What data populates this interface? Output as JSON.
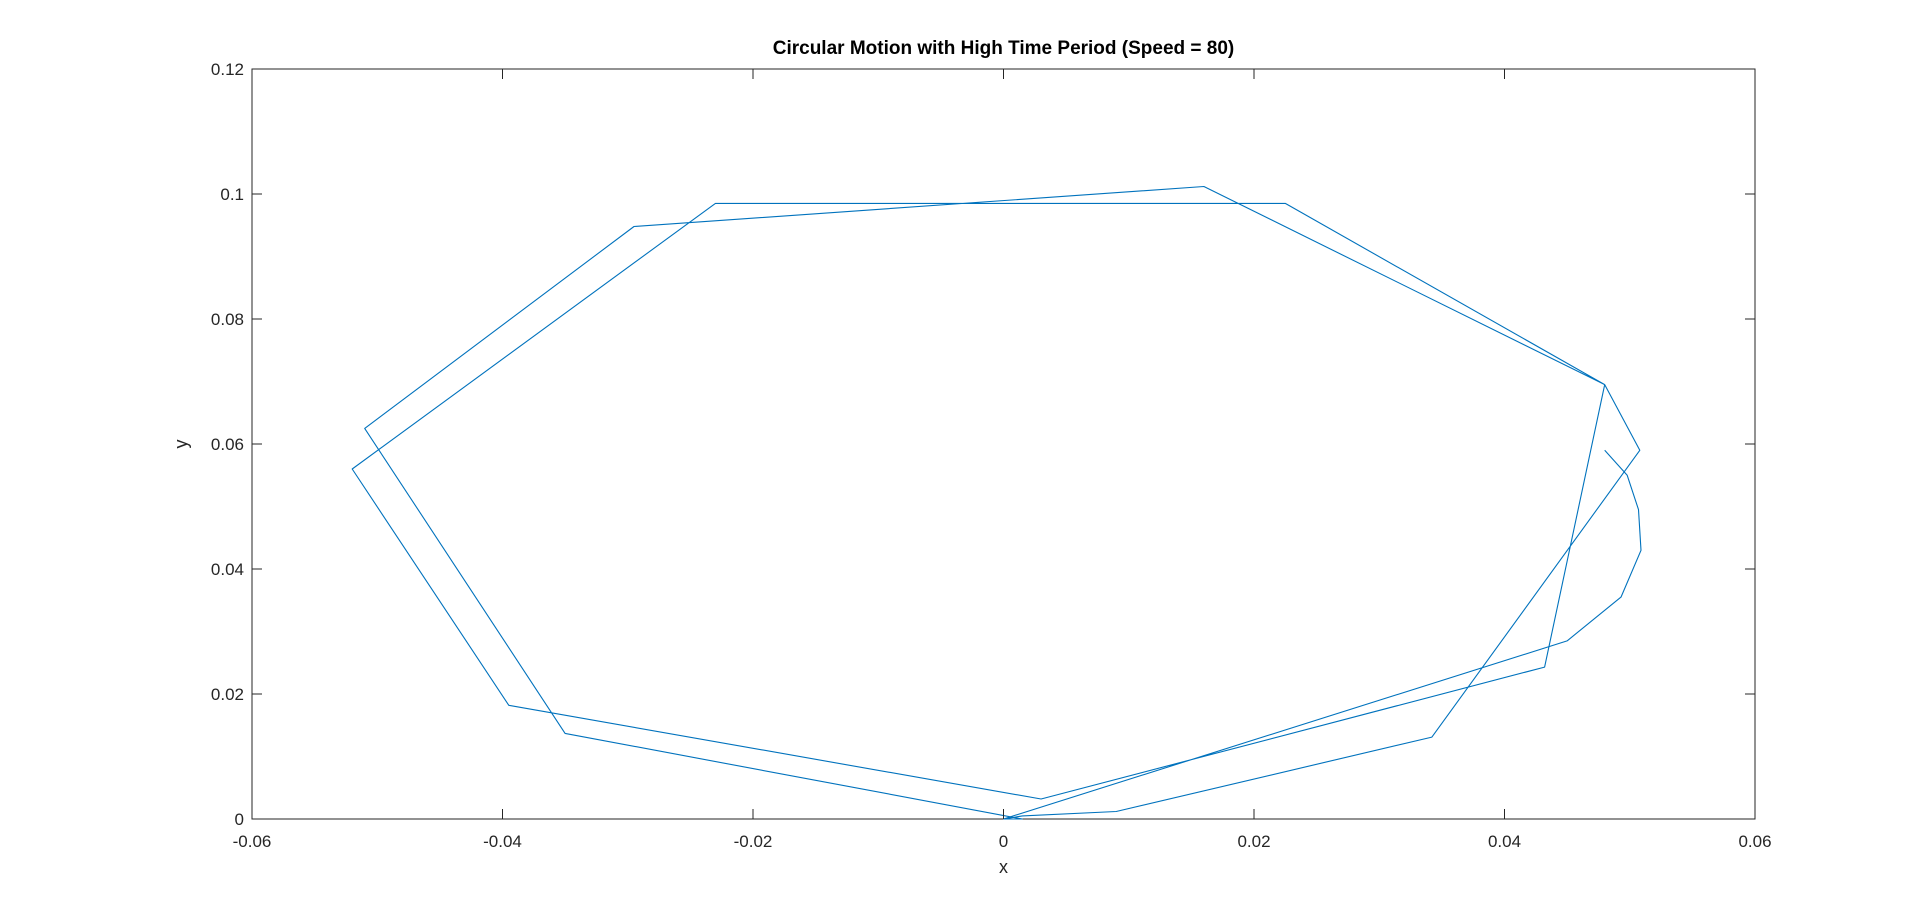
{
  "chart_data": {
    "type": "line",
    "title": "Circular Motion with High Time Period (Speed = 80)",
    "xlabel": "x",
    "ylabel": "y",
    "xlim": [
      -0.06,
      0.06
    ],
    "ylim": [
      0,
      0.12
    ],
    "xticks": [
      -0.06,
      -0.04,
      -0.02,
      0,
      0.02,
      0.04,
      0.06
    ],
    "xtick_labels": [
      "-0.06",
      "-0.04",
      "-0.02",
      "0",
      "0.02",
      "0.04",
      "0.06"
    ],
    "yticks": [
      0,
      0.02,
      0.04,
      0.06,
      0.08,
      0.1,
      0.12
    ],
    "ytick_labels": [
      "0",
      "0.02",
      "0.04",
      "0.06",
      "0.08",
      "0.1",
      "0.12"
    ],
    "grid": false,
    "line_color": "#0072BD",
    "series": [
      {
        "x": [
          0.0,
          0.0015,
          0.009,
          0.0342,
          0.0508,
          0.048,
          0.0225,
          -0.023,
          -0.052,
          -0.0395,
          0.003,
          0.0432,
          0.048,
          0.016,
          -0.0295,
          -0.051,
          -0.035,
          0.0015,
          0.0,
          0.045,
          0.0493,
          0.0509,
          0.0507,
          0.0498,
          0.048
        ],
        "y": [
          0.0,
          0.0005,
          0.0012,
          0.0131,
          0.059,
          0.0695,
          0.0985,
          0.0985,
          0.056,
          0.0182,
          0.0032,
          0.0243,
          0.0695,
          0.1012,
          0.0948,
          0.0625,
          0.0137,
          0.0,
          0.0,
          0.0285,
          0.0355,
          0.043,
          0.0495,
          0.055,
          0.059
        ]
      }
    ]
  }
}
